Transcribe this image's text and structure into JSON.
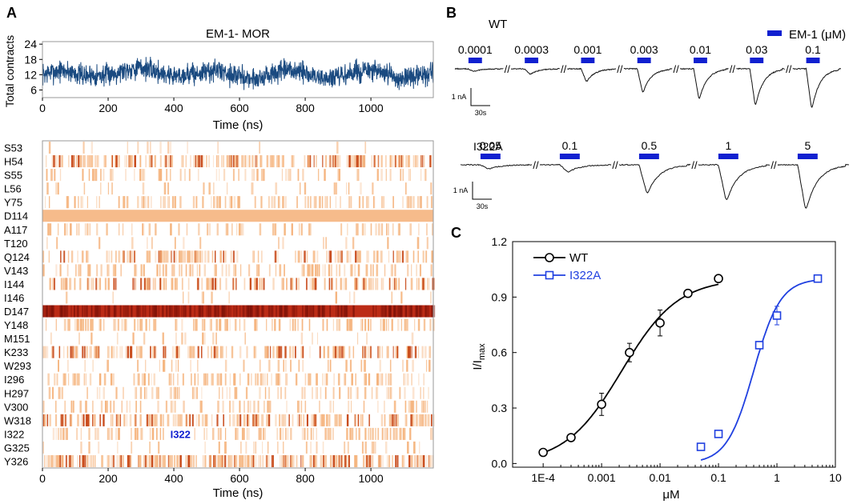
{
  "panel_labels": {
    "a": "A",
    "b": "B",
    "c": "C"
  },
  "colors": {
    "trace": "#1a4a80",
    "blue": "#1020d0",
    "fit_blue": "#2040e0",
    "heat_base": "#f5b47e",
    "heat_dark": "#b8200a"
  },
  "chart_data": [
    {
      "id": "contacts",
      "type": "line",
      "title": "EM-1- MOR",
      "xlabel": "Time (ns)",
      "ylabel": "Total contracts",
      "xlim": [
        0,
        1190
      ],
      "ylim": [
        3,
        25
      ],
      "xticks": [
        0,
        200,
        400,
        600,
        800,
        1000
      ],
      "yticks": [
        6,
        12,
        18,
        24
      ],
      "series": [
        {
          "name": "total contacts",
          "mean": 12,
          "noise_range": [
            6,
            23
          ]
        }
      ]
    },
    {
      "id": "heatmap",
      "type": "heatmap",
      "xlabel": "Time (ns)",
      "xlim": [
        0,
        1190
      ],
      "xticks": [
        0,
        200,
        400,
        600,
        800,
        1000
      ],
      "residues": [
        "S53",
        "H54",
        "S55",
        "L56",
        "Y75",
        "D114",
        "A117",
        "T120",
        "Q124",
        "V143",
        "I144",
        "I146",
        "D147",
        "Y148",
        "M151",
        "K233",
        "W293",
        "I296",
        "H297",
        "V300",
        "W318",
        "I322",
        "G325",
        "Y326"
      ],
      "contact_density": [
        0.04,
        0.55,
        0.2,
        0.08,
        0.3,
        1.0,
        0.2,
        0.05,
        0.4,
        0.28,
        0.45,
        0.04,
        1.0,
        0.3,
        0.06,
        0.45,
        0.12,
        0.3,
        0.2,
        0.2,
        0.55,
        0.3,
        0.1,
        0.7
      ],
      "annotation": "I322"
    },
    {
      "id": "dose_response",
      "type": "scatter",
      "xlabel": "μM",
      "ylabel": "I/I",
      "ylabel_sub": "max",
      "xscale": "log",
      "xlim": [
        3e-05,
        10
      ],
      "ylim": [
        -0.02,
        1.2
      ],
      "xticks": [
        0.0001,
        0.001,
        0.01,
        0.1,
        1,
        10
      ],
      "xtick_labels": [
        "1E-4",
        "0.001",
        "0.01",
        "0.1",
        "1",
        "10"
      ],
      "yticks": [
        0.0,
        0.3,
        0.6,
        0.9,
        1.2
      ],
      "ytick_labels": [
        "0.0",
        "0.3",
        "0.6",
        "0.9",
        "1.2"
      ],
      "legend": [
        "WT",
        "I322A"
      ],
      "series": [
        {
          "name": "WT",
          "marker": "circle",
          "x": [
            0.0001,
            0.0003,
            0.001,
            0.003,
            0.01,
            0.03,
            0.1
          ],
          "y": [
            0.06,
            0.14,
            0.32,
            0.6,
            0.76,
            0.92,
            1.0
          ],
          "err": [
            0.01,
            0.01,
            0.06,
            0.05,
            0.07,
            0.01,
            0.0
          ],
          "ec50": 0.0022,
          "hill": 0.9,
          "fit_range": [
            0.0001,
            0.1
          ]
        },
        {
          "name": "I322A",
          "marker": "square",
          "x": [
            0.05,
            0.1,
            0.5,
            1,
            5
          ],
          "y": [
            0.09,
            0.16,
            0.64,
            0.8,
            1.0
          ],
          "err": [
            0.0,
            0.01,
            0.02,
            0.05,
            0.0
          ],
          "ec50": 0.4,
          "hill": 1.9,
          "fit_range": [
            0.05,
            5
          ]
        }
      ]
    }
  ],
  "traces": {
    "wt_label": "WT",
    "legend_label": "EM-1 (μM)",
    "wt_concs": [
      "0.0001",
      "0.0003",
      "0.001",
      "0.003",
      "0.01",
      "0.03",
      "0.1"
    ],
    "wt_amps": [
      0.06,
      0.14,
      0.32,
      0.6,
      0.76,
      0.92,
      1.0
    ],
    "mut_label": "I322A",
    "mut_concs": [
      "0.05",
      "0.1",
      "0.5",
      "1",
      "5"
    ],
    "mut_amps": [
      0.09,
      0.16,
      0.64,
      0.8,
      1.0
    ],
    "break_mark": "//",
    "scale_current": "1 nA",
    "scale_time": "30s"
  }
}
